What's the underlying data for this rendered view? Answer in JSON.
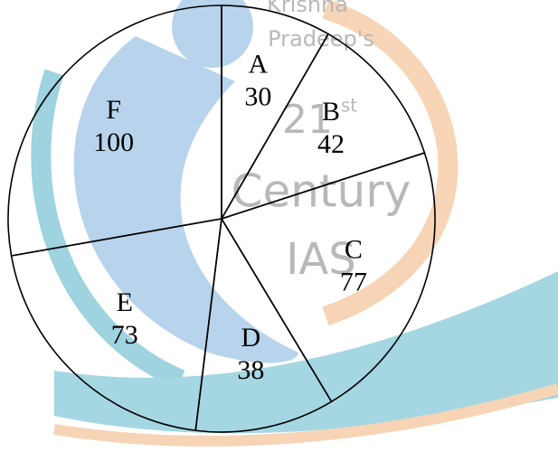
{
  "watermark": [
    "Krishna",
    "Pradeep's",
    "21",
    "st",
    "Century",
    "IAS"
  ],
  "chart_data": {
    "type": "pie",
    "categories": [
      "A",
      "B",
      "C",
      "D",
      "E",
      "F"
    ],
    "values": [
      30,
      42,
      77,
      38,
      73,
      100
    ]
  }
}
